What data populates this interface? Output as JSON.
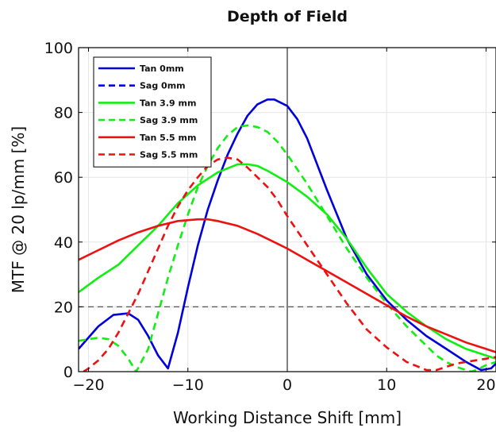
{
  "chart_data": {
    "type": "line",
    "title": "Depth of Field",
    "xlabel": "Working Distance Shift [mm]",
    "ylabel": "MTF @ 20 lp/mm [%]",
    "xlim": [
      -21,
      21
    ],
    "ylim": [
      0,
      100
    ],
    "xticks": [
      -20,
      -10,
      0,
      10,
      20
    ],
    "yticks": [
      0,
      20,
      40,
      60,
      80,
      100
    ],
    "x_tick_labels": [
      "−20",
      "−10",
      "0",
      "10",
      "20"
    ],
    "y_tick_labels": [
      "0",
      "20",
      "40",
      "60",
      "80",
      "100"
    ],
    "grid": true,
    "legend_position": "top-left",
    "reference_lines": {
      "vertical_x": 0,
      "horizontal_dashed_y": 20
    },
    "series": [
      {
        "name": "Tan 0mm",
        "color": "#0000dd",
        "dash": "solid",
        "x": [
          -21,
          -19,
          -17.5,
          -16,
          -15,
          -14,
          -13,
          -12,
          -11,
          -10,
          -9,
          -8,
          -7,
          -6,
          -5,
          -4,
          -3,
          -2,
          -1.3,
          0,
          1,
          2,
          4,
          6,
          8,
          10,
          12,
          14,
          16,
          18,
          19.5,
          20.5,
          21
        ],
        "y": [
          7,
          14,
          17.5,
          18,
          16,
          11,
          5,
          1,
          12,
          26,
          39,
          50,
          59,
          67,
          73.5,
          79,
          82.5,
          84,
          84,
          82,
          78,
          72,
          56,
          41,
          30,
          22,
          16,
          11,
          7,
          3,
          0.5,
          1,
          2.5
        ]
      },
      {
        "name": "Sag 0mm",
        "color": "#0000dd",
        "dash": "dashed",
        "x": [],
        "y": []
      },
      {
        "name": "Tan 3.9 mm",
        "color": "#11ee11",
        "dash": "solid",
        "x": [
          -21,
          -19,
          -17,
          -15,
          -13,
          -11,
          -9,
          -7,
          -5,
          -4,
          -3,
          -2,
          0,
          2,
          4,
          6,
          8,
          10,
          12,
          14,
          16,
          18,
          20,
          21
        ],
        "y": [
          24.5,
          29,
          33,
          39,
          45,
          52,
          57.5,
          61.5,
          64,
          64,
          63.5,
          62,
          58.5,
          54,
          48.5,
          41,
          32,
          24,
          18.5,
          14,
          10,
          7,
          5,
          4
        ]
      },
      {
        "name": "Sag 3.9 mm",
        "color": "#11ee11",
        "dash": "dashed",
        "x": [
          -21,
          -20,
          -19,
          -18,
          -17,
          -16,
          -15.2,
          -14,
          -13,
          -12,
          -11,
          -10,
          -9,
          -8,
          -7,
          -6,
          -5,
          -4,
          -3,
          -2,
          -1,
          0,
          2,
          4,
          6,
          8,
          10,
          12,
          14,
          15,
          16,
          17,
          18,
          18.5,
          19,
          20,
          21
        ],
        "y": [
          9.5,
          10,
          10.5,
          10,
          8,
          4,
          0,
          7,
          18,
          29,
          39,
          48.5,
          57,
          63.5,
          69,
          73,
          75.5,
          76,
          75.5,
          74,
          71,
          67,
          58,
          48,
          38,
          29,
          21,
          14,
          8,
          5,
          3,
          1.5,
          0.5,
          0,
          0.5,
          2,
          3
        ]
      },
      {
        "name": "Tan 5.5 mm",
        "color": "#ee1111",
        "dash": "solid",
        "x": [
          -21,
          -19,
          -17,
          -15,
          -13,
          -11,
          -9,
          -8,
          -7,
          -5,
          -3,
          -1,
          0,
          2,
          4,
          6,
          8,
          10,
          12,
          14,
          16,
          18,
          20,
          21
        ],
        "y": [
          34.5,
          37.5,
          40.5,
          43,
          45,
          46.5,
          47,
          47,
          46.5,
          45,
          42.5,
          39.5,
          38,
          34.5,
          31,
          27.5,
          24,
          20.5,
          17,
          14,
          11.5,
          9,
          7,
          6
        ]
      },
      {
        "name": "Sag 5.5 mm",
        "color": "#ee1111",
        "dash": "dashed",
        "x": [
          -20.5,
          -20,
          -19,
          -18,
          -17,
          -16,
          -15,
          -14,
          -13,
          -12,
          -11,
          -10,
          -9,
          -8,
          -7,
          -6,
          -5,
          -4,
          -3,
          -2,
          -1,
          0,
          2,
          4,
          6,
          8,
          10,
          12,
          14,
          15,
          16,
          17,
          18,
          19,
          20,
          21
        ],
        "y": [
          0,
          1,
          3.5,
          7,
          12,
          18,
          24,
          31,
          38,
          45,
          51,
          56,
          60,
          63.5,
          65.5,
          66,
          65.5,
          63,
          60,
          57,
          53,
          48,
          39,
          30,
          21,
          13,
          7.5,
          3,
          0.5,
          0.5,
          1.5,
          2.5,
          3,
          3.5,
          4,
          4.5
        ]
      }
    ]
  }
}
